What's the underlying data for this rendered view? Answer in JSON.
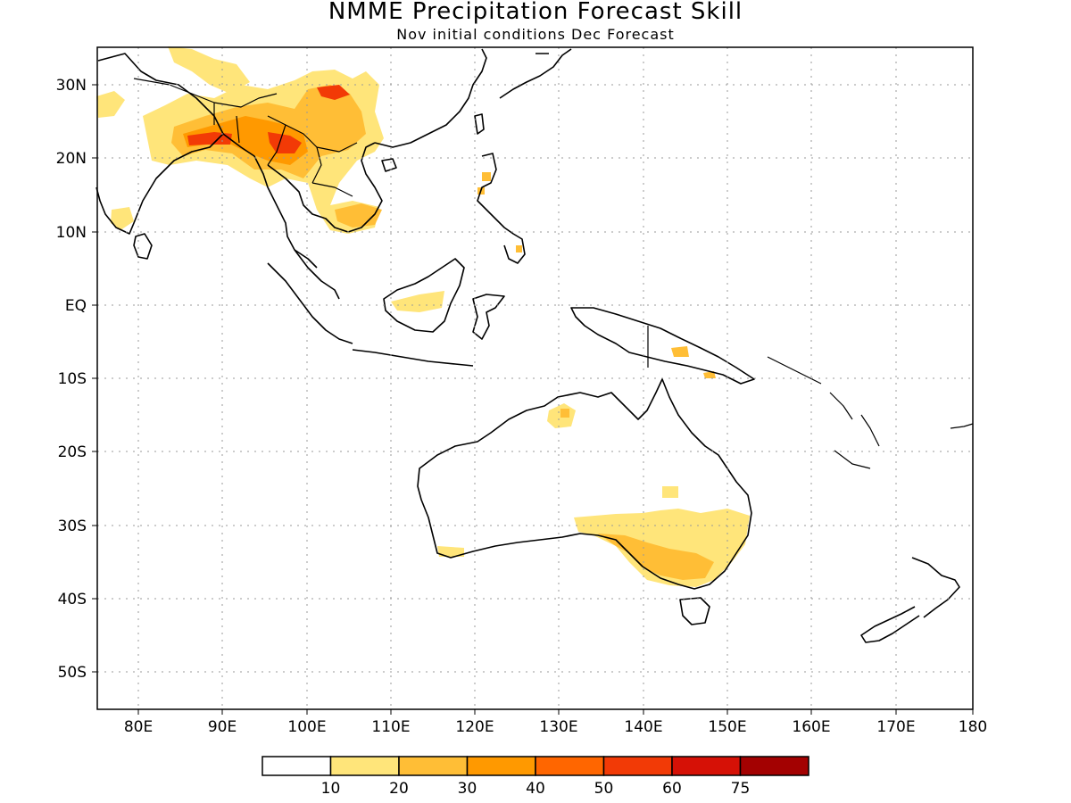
{
  "map": {
    "title": "NMME Precipitation Forecast Skill",
    "subtitle": "Nov initial conditions  Dec Forecast",
    "lon_labels": [
      "80E",
      "90E",
      "100E",
      "110E",
      "120E",
      "130E",
      "140E",
      "150E",
      "160E",
      "170E",
      "180"
    ],
    "lat_labels": [
      "30N",
      "20N",
      "10N",
      "EQ",
      "10S",
      "20S",
      "30S",
      "40S",
      "50S"
    ],
    "lon_range": [
      75,
      180
    ],
    "lat_range": [
      -55,
      35
    ],
    "gridlines": "dotted"
  },
  "colorbar": {
    "labels": [
      "10",
      "20",
      "30",
      "40",
      "50",
      "60",
      "75"
    ],
    "colors": [
      "#ffffff",
      "#ffe57a",
      "#ffbe36",
      "#ff9900",
      "#ff6600",
      "#f23a06",
      "#d61106",
      "#a30101"
    ]
  }
}
